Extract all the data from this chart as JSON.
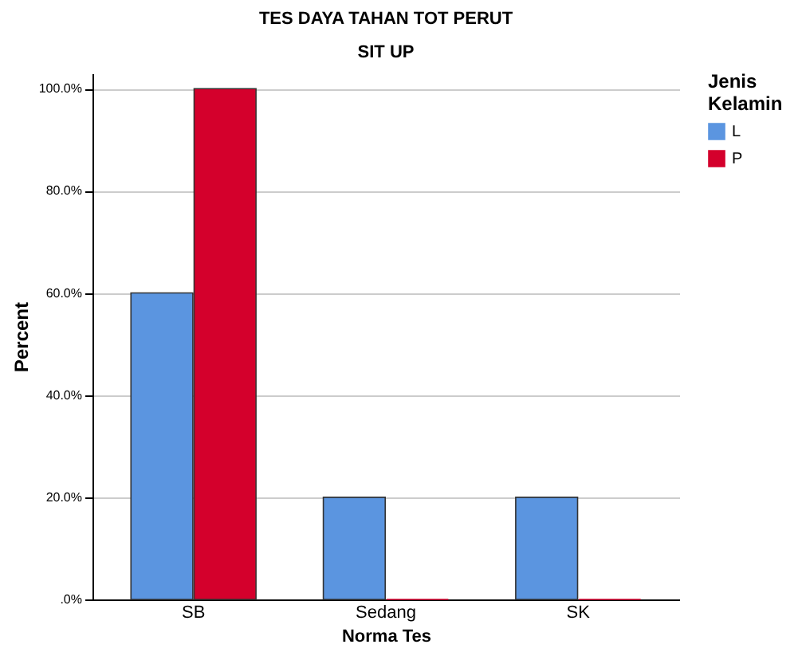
{
  "chart_data": {
    "type": "bar",
    "title": "TES DAYA TAHAN TOT PERUT",
    "subtitle": "SIT UP",
    "xlabel": "Norma Tes",
    "ylabel": "Percent",
    "legend_title": "Jenis Kelamin",
    "categories": [
      "SB",
      "Sedang",
      "SK"
    ],
    "series": [
      {
        "name": "L",
        "color": "#5b95e0",
        "values": [
          60,
          20,
          20
        ]
      },
      {
        "name": "P",
        "color": "#d4002c",
        "values": [
          100,
          0,
          0
        ]
      }
    ],
    "ylim": [
      0,
      103
    ],
    "yticks": [
      {
        "value": 0,
        "label": ".0%"
      },
      {
        "value": 20,
        "label": "20.0%"
      },
      {
        "value": 40,
        "label": "40.0%"
      },
      {
        "value": 60,
        "label": "60.0%"
      },
      {
        "value": 80,
        "label": "80.0%"
      },
      {
        "value": 100,
        "label": "100.0%"
      }
    ],
    "grid": "y",
    "legend": "top right"
  }
}
